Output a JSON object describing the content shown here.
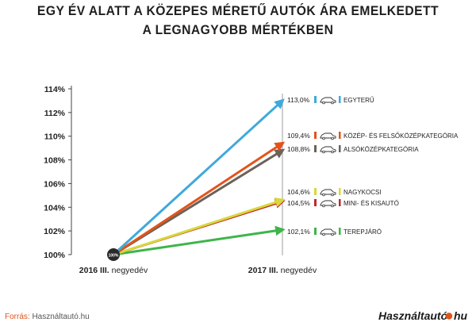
{
  "title_line1": "EGY ÉV ALATT A KÖZEPES MÉRETŰ AUTÓK ÁRA EMELKEDETT",
  "title_line2": "A LEGNAGYOBB MÉRTÉKBEN",
  "source_label": "Forrás:",
  "source_value": "Használtautó.hu",
  "logo_text": "Használtautó",
  "logo_suffix": "hu",
  "origin_badge": "100%",
  "chart_data": {
    "type": "line",
    "x": [
      "2016 III. negyedév",
      "2017 III. negyedév"
    ],
    "x_label_parts": [
      {
        "bold": "2016 III.",
        "rest": " negyedév"
      },
      {
        "bold": "2017 III.",
        "rest": " negyedév"
      }
    ],
    "ylim": [
      100,
      114
    ],
    "yticks": [
      "100%",
      "102%",
      "104%",
      "106%",
      "108%",
      "110%",
      "112%",
      "114%"
    ],
    "grid": false,
    "series": [
      {
        "name": "EGYTERŰ",
        "values": [
          100,
          113.0
        ],
        "label": "113,0%",
        "color": "#3fa9db"
      },
      {
        "name": "KÖZÉP- ÉS FELSŐKÖZÉPKATEGÓRIA",
        "values": [
          100,
          109.4
        ],
        "label": "109,4%",
        "color": "#e2531b"
      },
      {
        "name": "ALSÓKÖZÉPKATEGÓRIA",
        "values": [
          100,
          108.8
        ],
        "label": "108,8%",
        "color": "#6b6358"
      },
      {
        "name": "NAGYKOCSI",
        "values": [
          100,
          104.6
        ],
        "label": "104,6%",
        "color": "#d8d83a"
      },
      {
        "name": "MINI- ÉS KISAUTÓ",
        "values": [
          100,
          104.5
        ],
        "label": "104,5%",
        "color": "#c0282d"
      },
      {
        "name": "TEREPJÁRÓ",
        "values": [
          100,
          102.1
        ],
        "label": "102,1%",
        "color": "#3db54a"
      }
    ]
  }
}
